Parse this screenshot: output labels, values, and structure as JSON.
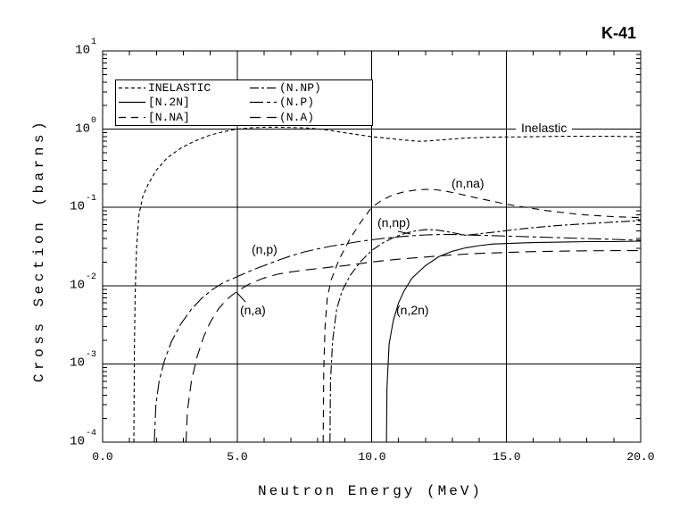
{
  "legend": {
    "entries": [
      {
        "key": "inelastic",
        "label": "INELASTIC"
      },
      {
        "key": "n2n",
        "label": "[N.2N]"
      },
      {
        "key": "nna",
        "label": "[N.NA]"
      },
      {
        "key": "nnp",
        "label": "(N.NP)"
      },
      {
        "key": "np",
        "label": "(N.P)"
      },
      {
        "key": "na",
        "label": "(N.A)"
      }
    ]
  },
  "annotations": {
    "inelastic": "Inelastic",
    "nna": "(n,na)",
    "nnp": "(n,np)",
    "np": "(n,p)",
    "na": "(n,a)",
    "n2n": "(n,2n)"
  },
  "chart_data": {
    "type": "line",
    "title": "K-41",
    "xlabel": "Neutron Energy (MeV)",
    "ylabel": "Cross Section (barns)",
    "xlim": [
      0,
      20
    ],
    "ylim": [
      0.0001,
      10
    ],
    "log_y": true,
    "grid": true,
    "x_gridlines": [
      5,
      10,
      15
    ],
    "y_gridline_values": [
      1,
      0.1,
      0.01,
      0.001
    ],
    "x_tick_values": [
      0,
      5,
      10,
      15,
      20
    ],
    "x_minor_step": 1,
    "x_tick_labels": [
      "0.0",
      "5.0",
      "10.0",
      "15.0",
      "20.0"
    ],
    "y_tick_labels": [
      {
        "mantissa": "10",
        "exp": "1"
      },
      {
        "mantissa": "10",
        "exp": "0"
      },
      {
        "mantissa": "10",
        "exp": "-1"
      },
      {
        "mantissa": "10",
        "exp": "-2"
      },
      {
        "mantissa": "10",
        "exp": "-3"
      },
      {
        "mantissa": "10",
        "exp": "-4"
      }
    ],
    "legend_position": "top-left-inside",
    "series": [
      {
        "key": "inelastic",
        "name": "INELASTIC",
        "points": [
          [
            1.16,
            0.0001
          ],
          [
            1.18,
            0.0015
          ],
          [
            1.21,
            0.008
          ],
          [
            1.26,
            0.03
          ],
          [
            1.35,
            0.08
          ],
          [
            1.5,
            0.14
          ],
          [
            1.7,
            0.2
          ],
          [
            2,
            0.3
          ],
          [
            2.4,
            0.43
          ],
          [
            2.9,
            0.57
          ],
          [
            3.4,
            0.7
          ],
          [
            4,
            0.84
          ],
          [
            4.5,
            0.93
          ],
          [
            5,
            1.0
          ],
          [
            5.5,
            1.04
          ],
          [
            6,
            1.06
          ],
          [
            6.5,
            1.06
          ],
          [
            7,
            1.05
          ],
          [
            7.5,
            1.04
          ],
          [
            8,
            1.01
          ],
          [
            8.5,
            0.96
          ],
          [
            9,
            0.9
          ],
          [
            9.5,
            0.85
          ],
          [
            10,
            0.8
          ],
          [
            10.5,
            0.77
          ],
          [
            11,
            0.74
          ],
          [
            11.5,
            0.71
          ],
          [
            11.8,
            0.7
          ],
          [
            12.2,
            0.71
          ],
          [
            12.8,
            0.74
          ],
          [
            13.5,
            0.77
          ],
          [
            14.5,
            0.79
          ],
          [
            16,
            0.8
          ],
          [
            17,
            0.81
          ],
          [
            18,
            0.81
          ],
          [
            19,
            0.81
          ],
          [
            20,
            0.8
          ]
        ]
      },
      {
        "key": "np",
        "name": "(N.P)",
        "points": [
          [
            1.92,
            0.0001
          ],
          [
            1.98,
            0.0003
          ],
          [
            2.1,
            0.0006
          ],
          [
            2.3,
            0.0011
          ],
          [
            2.55,
            0.0019
          ],
          [
            2.9,
            0.0032
          ],
          [
            3.3,
            0.005
          ],
          [
            3.7,
            0.007
          ],
          [
            4.1,
            0.009
          ],
          [
            4.5,
            0.011
          ],
          [
            5,
            0.013
          ],
          [
            5.5,
            0.0155
          ],
          [
            6,
            0.018
          ],
          [
            6.5,
            0.021
          ],
          [
            7,
            0.024
          ],
          [
            7.5,
            0.027
          ],
          [
            8,
            0.0295
          ],
          [
            8.5,
            0.032
          ],
          [
            9,
            0.034
          ],
          [
            9.5,
            0.0365
          ],
          [
            10,
            0.0385
          ],
          [
            10.5,
            0.0405
          ],
          [
            11,
            0.042
          ],
          [
            11.5,
            0.0435
          ],
          [
            12,
            0.0445
          ],
          [
            12.5,
            0.045
          ],
          [
            13,
            0.045
          ],
          [
            13.5,
            0.0445
          ],
          [
            14,
            0.044
          ],
          [
            15,
            0.043
          ],
          [
            16,
            0.042
          ],
          [
            17,
            0.041
          ],
          [
            18,
            0.04
          ],
          [
            19,
            0.039
          ],
          [
            20,
            0.038
          ]
        ]
      },
      {
        "key": "na",
        "name": "(N.A)",
        "points": [
          [
            3.1,
            0.0001
          ],
          [
            3.15,
            0.00025
          ],
          [
            3.3,
            0.0006
          ],
          [
            3.5,
            0.0012
          ],
          [
            3.75,
            0.0022
          ],
          [
            4,
            0.0034
          ],
          [
            4.3,
            0.005
          ],
          [
            4.6,
            0.0066
          ],
          [
            5,
            0.0085
          ],
          [
            5.5,
            0.0107
          ],
          [
            6,
            0.0125
          ],
          [
            6.5,
            0.014
          ],
          [
            7,
            0.015
          ],
          [
            7.5,
            0.0158
          ],
          [
            8,
            0.0165
          ],
          [
            8.5,
            0.0173
          ],
          [
            9,
            0.018
          ],
          [
            9.5,
            0.019
          ],
          [
            10,
            0.02
          ],
          [
            10.5,
            0.021
          ],
          [
            11,
            0.0218
          ],
          [
            11.5,
            0.0225
          ],
          [
            12,
            0.0232
          ],
          [
            12.5,
            0.024
          ],
          [
            13,
            0.0247
          ],
          [
            13.5,
            0.0253
          ],
          [
            14,
            0.0258
          ],
          [
            14.5,
            0.0262
          ],
          [
            15,
            0.0266
          ],
          [
            16,
            0.0272
          ],
          [
            17,
            0.0276
          ],
          [
            18,
            0.0279
          ],
          [
            19,
            0.028
          ],
          [
            20,
            0.028
          ]
        ]
      },
      {
        "key": "nna",
        "name": "[N.NA]",
        "points": [
          [
            8.2,
            0.0001
          ],
          [
            8.22,
            0.0008
          ],
          [
            8.27,
            0.003
          ],
          [
            8.35,
            0.007
          ],
          [
            8.5,
            0.012
          ],
          [
            8.8,
            0.022
          ],
          [
            9.2,
            0.04
          ],
          [
            9.6,
            0.065
          ],
          [
            10,
            0.1
          ],
          [
            10.4,
            0.125
          ],
          [
            10.8,
            0.145
          ],
          [
            11.2,
            0.158
          ],
          [
            11.6,
            0.166
          ],
          [
            12,
            0.17
          ],
          [
            12.4,
            0.168
          ],
          [
            12.8,
            0.16
          ],
          [
            13.2,
            0.15
          ],
          [
            13.6,
            0.14
          ],
          [
            14,
            0.13
          ],
          [
            14.5,
            0.12
          ],
          [
            15,
            0.11
          ],
          [
            15.5,
            0.103
          ],
          [
            16,
            0.097
          ],
          [
            16.5,
            0.091
          ],
          [
            17,
            0.087
          ],
          [
            17.5,
            0.083
          ],
          [
            18,
            0.08
          ],
          [
            18.5,
            0.078
          ],
          [
            19,
            0.076
          ],
          [
            19.5,
            0.075
          ],
          [
            20,
            0.074
          ]
        ]
      },
      {
        "key": "nnp",
        "name": "(N.NP)",
        "points": [
          [
            8.45,
            0.0001
          ],
          [
            8.47,
            0.0006
          ],
          [
            8.55,
            0.002
          ],
          [
            8.7,
            0.005
          ],
          [
            8.9,
            0.0085
          ],
          [
            9.2,
            0.0135
          ],
          [
            9.6,
            0.0205
          ],
          [
            10,
            0.028
          ],
          [
            10.4,
            0.035
          ],
          [
            10.8,
            0.041
          ],
          [
            11.2,
            0.046
          ],
          [
            11.6,
            0.05
          ],
          [
            12,
            0.052
          ],
          [
            12.4,
            0.0515
          ],
          [
            12.8,
            0.049
          ],
          [
            13.2,
            0.046
          ],
          [
            13.5,
            0.044
          ],
          [
            14,
            0.046
          ],
          [
            14.5,
            0.048
          ],
          [
            15,
            0.0505
          ],
          [
            15.5,
            0.053
          ],
          [
            16,
            0.055
          ],
          [
            17,
            0.059
          ],
          [
            18,
            0.062
          ],
          [
            19,
            0.065
          ],
          [
            20,
            0.068
          ]
        ]
      },
      {
        "key": "n2n",
        "name": "[N.2N]",
        "points": [
          [
            10.55,
            0.0001
          ],
          [
            10.57,
            0.0005
          ],
          [
            10.65,
            0.0018
          ],
          [
            10.8,
            0.0035
          ],
          [
            11,
            0.006
          ],
          [
            11.2,
            0.0085
          ],
          [
            11.5,
            0.0125
          ],
          [
            12,
            0.018
          ],
          [
            12.5,
            0.0235
          ],
          [
            13,
            0.0275
          ],
          [
            13.5,
            0.0305
          ],
          [
            14,
            0.0325
          ],
          [
            14.5,
            0.034
          ],
          [
            15,
            0.0345
          ],
          [
            15.5,
            0.035
          ],
          [
            16,
            0.0355
          ],
          [
            17,
            0.036
          ],
          [
            18,
            0.0365
          ],
          [
            19,
            0.0365
          ],
          [
            20,
            0.037
          ]
        ]
      }
    ]
  }
}
